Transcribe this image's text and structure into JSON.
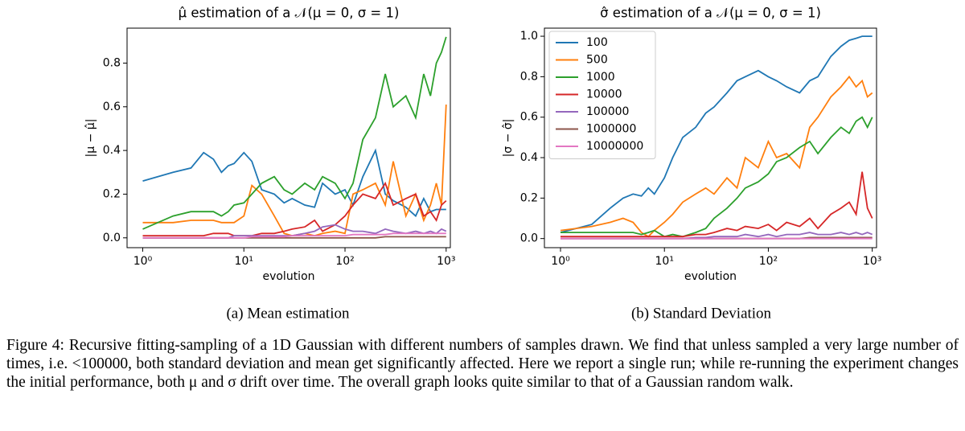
{
  "chart_data": [
    {
      "type": "line",
      "title": "μ̂ estimation of a 𝒩(μ = 0, σ = 1)",
      "xlabel": "evolution",
      "ylabel": "|μ − μ̂|",
      "xscale": "log",
      "xlim": [
        0.7,
        1100
      ],
      "xticks": [
        {
          "value": 1,
          "label": "10⁰"
        },
        {
          "value": 10,
          "label": "10¹"
        },
        {
          "value": 100,
          "label": "10²"
        },
        {
          "value": 1000,
          "label": "10³"
        }
      ],
      "ylim": [
        -0.045,
        0.96
      ],
      "yticks": [
        {
          "value": 0,
          "label": "0.0"
        },
        0.2,
        0.4,
        0.6,
        0.8
      ],
      "legend": false,
      "x": [
        1,
        2,
        3,
        4,
        5,
        6,
        7,
        8,
        10,
        12,
        15,
        20,
        25,
        30,
        40,
        50,
        60,
        80,
        100,
        120,
        150,
        200,
        250,
        300,
        400,
        500,
        600,
        700,
        800,
        900,
        1000
      ],
      "series": [
        {
          "color": "#1f77b4",
          "values": [
            0.26,
            0.3,
            0.32,
            0.39,
            0.36,
            0.3,
            0.33,
            0.34,
            0.39,
            0.35,
            0.22,
            0.2,
            0.16,
            0.18,
            0.15,
            0.14,
            0.25,
            0.2,
            0.22,
            0.15,
            0.28,
            0.4,
            0.2,
            0.17,
            0.14,
            0.1,
            0.18,
            0.12,
            0.13,
            0.13,
            0.13
          ]
        },
        {
          "color": "#ff7f0e",
          "values": [
            0.07,
            0.07,
            0.08,
            0.08,
            0.08,
            0.07,
            0.07,
            0.07,
            0.1,
            0.24,
            0.2,
            0.1,
            0.02,
            0.01,
            0.02,
            0.01,
            0.02,
            0.03,
            0.02,
            0.2,
            0.22,
            0.25,
            0.15,
            0.35,
            0.1,
            0.2,
            0.08,
            0.15,
            0.25,
            0.15,
            0.61
          ]
        },
        {
          "color": "#2ca02c",
          "values": [
            0.04,
            0.1,
            0.12,
            0.12,
            0.12,
            0.1,
            0.12,
            0.15,
            0.16,
            0.2,
            0.25,
            0.28,
            0.22,
            0.2,
            0.25,
            0.22,
            0.28,
            0.25,
            0.18,
            0.25,
            0.45,
            0.55,
            0.75,
            0.6,
            0.65,
            0.55,
            0.75,
            0.65,
            0.8,
            0.85,
            0.92
          ]
        },
        {
          "color": "#d62728",
          "values": [
            0.01,
            0.01,
            0.01,
            0.01,
            0.02,
            0.02,
            0.02,
            0.01,
            0.01,
            0.01,
            0.02,
            0.02,
            0.03,
            0.04,
            0.05,
            0.08,
            0.03,
            0.06,
            0.1,
            0.15,
            0.2,
            0.18,
            0.25,
            0.15,
            0.18,
            0.2,
            0.1,
            0.12,
            0.08,
            0.15,
            0.17
          ]
        },
        {
          "color": "#9467bd",
          "values": [
            0,
            0,
            0,
            0,
            0,
            0,
            0,
            0.01,
            0.01,
            0.01,
            0.01,
            0.01,
            0.01,
            0.01,
            0.02,
            0.03,
            0.05,
            0.06,
            0.04,
            0.03,
            0.03,
            0.02,
            0.04,
            0.03,
            0.02,
            0.03,
            0.02,
            0.03,
            0.02,
            0.04,
            0.03
          ]
        },
        {
          "color": "#8c564b",
          "values": [
            0,
            0,
            0,
            0,
            0,
            0,
            0,
            0,
            0,
            0,
            0,
            0,
            0,
            0,
            0,
            0,
            0,
            0,
            0,
            0,
            0,
            0,
            0.005,
            0.005,
            0.005,
            0.005,
            0.005,
            0.005,
            0.005,
            0.005,
            0.005
          ]
        },
        {
          "color": "#e377c2",
          "values": [
            0,
            0,
            0,
            0,
            0,
            0,
            0,
            0,
            0,
            0.005,
            0.005,
            0.005,
            0.005,
            0.01,
            0.01,
            0.01,
            0.01,
            0.01,
            0.01,
            0.015,
            0.015,
            0.015,
            0.015,
            0.02,
            0.02,
            0.02,
            0.02,
            0.02,
            0.02,
            0.02,
            0.02
          ]
        }
      ]
    },
    {
      "type": "line",
      "title": "σ̂ estimation of a 𝒩(μ = 0, σ = 1)",
      "xlabel": "evolution",
      "ylabel": "|σ − σ̂|",
      "xscale": "log",
      "xlim": [
        0.7,
        1100
      ],
      "xticks": [
        {
          "value": 1,
          "label": "10⁰"
        },
        {
          "value": 10,
          "label": "10¹"
        },
        {
          "value": 100,
          "label": "10²"
        },
        {
          "value": 1000,
          "label": "10³"
        }
      ],
      "ylim": [
        -0.045,
        1.04
      ],
      "yticks": [
        {
          "value": 0,
          "label": "0.0"
        },
        0.2,
        0.4,
        0.6,
        0.8,
        {
          "value": 1,
          "label": "1.0"
        }
      ],
      "legend": "upper left",
      "x": [
        1,
        2,
        3,
        4,
        5,
        6,
        7,
        8,
        10,
        12,
        15,
        20,
        25,
        30,
        40,
        50,
        60,
        80,
        100,
        120,
        150,
        200,
        250,
        300,
        400,
        500,
        600,
        700,
        800,
        900,
        1000
      ],
      "series": [
        {
          "name": "100",
          "color": "#1f77b4",
          "values": [
            0.03,
            0.07,
            0.15,
            0.2,
            0.22,
            0.21,
            0.25,
            0.22,
            0.3,
            0.4,
            0.5,
            0.55,
            0.62,
            0.65,
            0.72,
            0.78,
            0.8,
            0.83,
            0.8,
            0.78,
            0.75,
            0.72,
            0.78,
            0.8,
            0.9,
            0.95,
            0.98,
            0.99,
            1.0,
            1.0,
            1.0
          ]
        },
        {
          "name": "500",
          "color": "#ff7f0e",
          "values": [
            0.04,
            0.06,
            0.08,
            0.1,
            0.08,
            0.03,
            0.01,
            0.04,
            0.08,
            0.12,
            0.18,
            0.22,
            0.25,
            0.22,
            0.3,
            0.25,
            0.4,
            0.35,
            0.48,
            0.4,
            0.42,
            0.35,
            0.55,
            0.6,
            0.7,
            0.75,
            0.8,
            0.75,
            0.78,
            0.7,
            0.72
          ]
        },
        {
          "name": "1000",
          "color": "#2ca02c",
          "values": [
            0.03,
            0.03,
            0.03,
            0.03,
            0.03,
            0.02,
            0.03,
            0.04,
            0.01,
            0.02,
            0.01,
            0.03,
            0.05,
            0.1,
            0.15,
            0.2,
            0.25,
            0.28,
            0.32,
            0.38,
            0.4,
            0.45,
            0.48,
            0.42,
            0.5,
            0.55,
            0.52,
            0.58,
            0.6,
            0.55,
            0.6
          ]
        },
        {
          "name": "10000",
          "color": "#d62728",
          "values": [
            0.01,
            0.01,
            0.01,
            0.01,
            0.01,
            0.01,
            0.01,
            0.01,
            0.01,
            0.01,
            0.01,
            0.02,
            0.02,
            0.03,
            0.05,
            0.04,
            0.06,
            0.05,
            0.07,
            0.04,
            0.08,
            0.06,
            0.1,
            0.05,
            0.12,
            0.15,
            0.18,
            0.12,
            0.33,
            0.15,
            0.1
          ]
        },
        {
          "name": "100000",
          "color": "#9467bd",
          "values": [
            0,
            0,
            0,
            0,
            0,
            0,
            0,
            0,
            0,
            0,
            0,
            0.005,
            0.005,
            0.01,
            0.01,
            0.01,
            0.02,
            0.01,
            0.02,
            0.01,
            0.02,
            0.02,
            0.03,
            0.02,
            0.02,
            0.03,
            0.02,
            0.03,
            0.02,
            0.03,
            0.02
          ]
        },
        {
          "name": "1000000",
          "color": "#8c564b",
          "values": [
            0,
            0,
            0,
            0,
            0,
            0,
            0,
            0,
            0,
            0,
            0,
            0,
            0,
            0,
            0,
            0,
            0,
            0,
            0,
            0,
            0,
            0,
            0.005,
            0.005,
            0.005,
            0.005,
            0.005,
            0.005,
            0.005,
            0.005,
            0.005
          ]
        },
        {
          "name": "10000000",
          "color": "#e377c2",
          "values": [
            0,
            0,
            0,
            0,
            0,
            0,
            0,
            0,
            0,
            0,
            0,
            0,
            0,
            0,
            0,
            0,
            0,
            0,
            0,
            0,
            0,
            0,
            0,
            0,
            0,
            0,
            0,
            0,
            0,
            0,
            0
          ]
        }
      ]
    }
  ],
  "subcaptions": [
    "(a) Mean estimation",
    "(b) Standard Deviation"
  ],
  "caption": "Figure 4: Recursive fitting-sampling of a 1D Gaussian with different numbers of samples drawn. We find that unless sampled a very large number of times, i.e. <100000, both standard deviation and mean get significantly affected. Here we report a single run; while re-running the experiment changes the initial performance, both μ and σ drift over time. The overall graph looks quite similar to that of a Gaussian random walk."
}
